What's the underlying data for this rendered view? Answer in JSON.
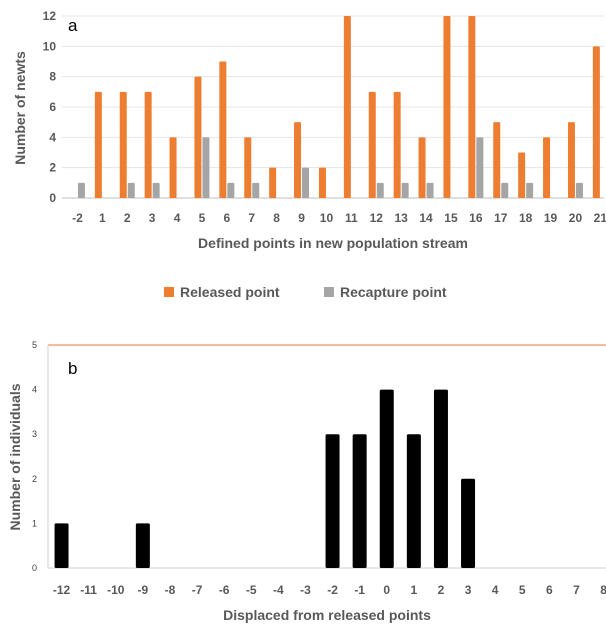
{
  "chart_data": [
    {
      "type": "bar",
      "panel_label": "a",
      "categories": [
        "-2",
        "1",
        "2",
        "3",
        "4",
        "5",
        "6",
        "7",
        "8",
        "9",
        "10",
        "11",
        "12",
        "13",
        "14",
        "15",
        "16",
        "17",
        "18",
        "19",
        "20",
        "21"
      ],
      "series": [
        {
          "name": "Released point",
          "values": [
            0,
            7,
            7,
            7,
            4,
            8,
            9,
            4,
            2,
            5,
            2,
            12,
            7,
            7,
            4,
            12,
            12,
            5,
            3,
            4,
            5,
            10
          ]
        },
        {
          "name": "Recapture point",
          "values": [
            1,
            0,
            1,
            1,
            0,
            4,
            1,
            1,
            0,
            2,
            0,
            0,
            1,
            1,
            1,
            0,
            4,
            1,
            1,
            0,
            1,
            0
          ]
        }
      ],
      "xlabel": "Defined points in new population stream",
      "ylabel": "Number of newts",
      "ylim": [
        0,
        12
      ],
      "yticks": [
        "0",
        "2",
        "4",
        "6",
        "8",
        "10",
        "12"
      ],
      "legend_position": "bottom",
      "grid": true
    },
    {
      "type": "bar",
      "panel_label": "b",
      "categories": [
        "-12",
        "-11",
        "-10",
        "-9",
        "-8",
        "-7",
        "-6",
        "-5",
        "-4",
        "-3",
        "-2",
        "-1",
        "0",
        "1",
        "2",
        "3",
        "4",
        "5",
        "6",
        "7",
        "8"
      ],
      "values": [
        1,
        0,
        0,
        1,
        0,
        0,
        0,
        0,
        0,
        0,
        3,
        3,
        4,
        3,
        4,
        2,
        0,
        0,
        0,
        0,
        0
      ],
      "xlabel": "Displaced from released points",
      "ylabel": "Number of individuals",
      "ylim": [
        0,
        5
      ],
      "yticks": [
        "0",
        "1",
        "2",
        "3",
        "4",
        "5"
      ],
      "grid": false
    }
  ],
  "colors": {
    "released": "#ED7D31",
    "recapture": "#A5A5A5",
    "panel_b_bars": "#000000",
    "axis": "#bfbfbf",
    "top_border_b": "#ED7D31"
  }
}
